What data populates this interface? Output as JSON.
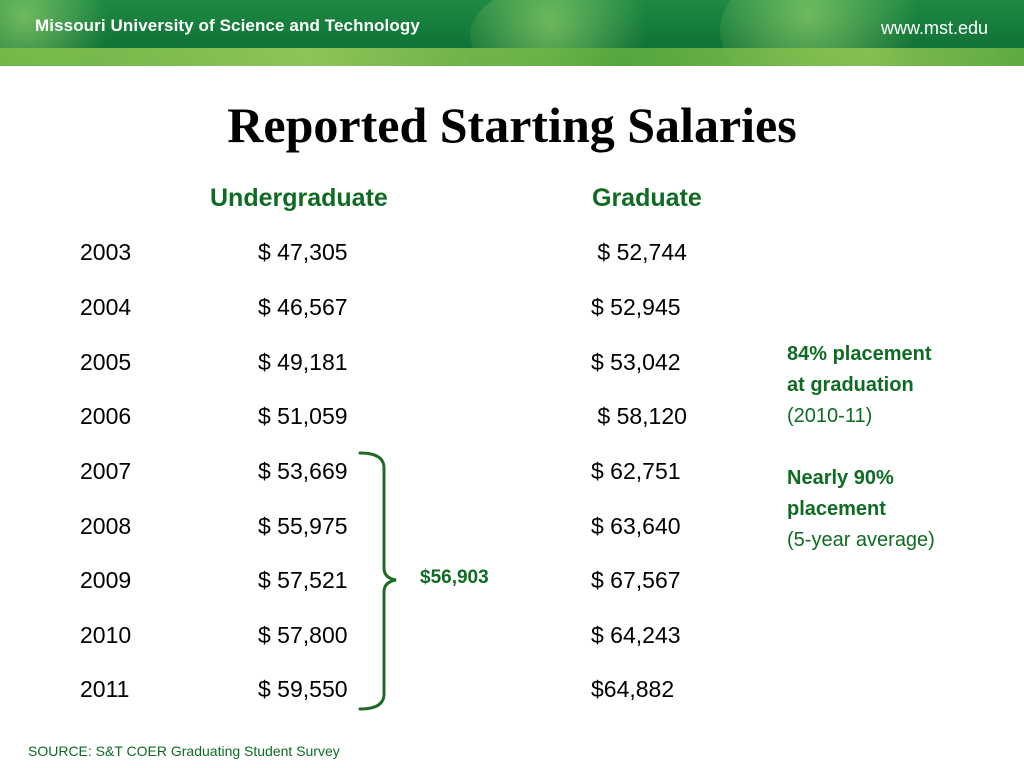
{
  "header": {
    "organization": "Missouri University of Science and Technology",
    "website": "www.mst.edu",
    "banner_color": "#13783a"
  },
  "slide": {
    "title": "Reported Starting Salaries",
    "columns": {
      "undergraduate": "Undergraduate",
      "graduate": "Graduate"
    },
    "rows": [
      {
        "year": "2003",
        "undergraduate": "$ 47,305",
        "graduate": " $ 52,744"
      },
      {
        "year": "2004",
        "undergraduate": "$ 46,567",
        "graduate": "$ 52,945"
      },
      {
        "year": "2005",
        "undergraduate": "$ 49,181",
        "graduate": "$ 53,042"
      },
      {
        "year": "2006",
        "undergraduate": "$ 51,059",
        "graduate": " $ 58,120"
      },
      {
        "year": "2007",
        "undergraduate": "$ 53,669",
        "graduate": "$ 62,751"
      },
      {
        "year": "2008",
        "undergraduate": "$ 55,975",
        "graduate": "$ 63,640"
      },
      {
        "year": "2009",
        "undergraduate": "$ 57,521",
        "graduate": "$ 67,567"
      },
      {
        "year": "2010",
        "undergraduate": "$ 57,800",
        "graduate": "$ 64,243"
      },
      {
        "year": "2011",
        "undergraduate": "$ 59,550",
        "graduate": "$64,882"
      }
    ],
    "average_label": "$56,903",
    "placement": {
      "line1": "84% placement",
      "line2": "at graduation",
      "line3": "(2010-11)",
      "line4": "Nearly 90%",
      "line5": "placement",
      "line6": "(5-year average)"
    },
    "source": "SOURCE: S&T COER Graduating Student Survey",
    "accent_color": "#0f6b24"
  }
}
